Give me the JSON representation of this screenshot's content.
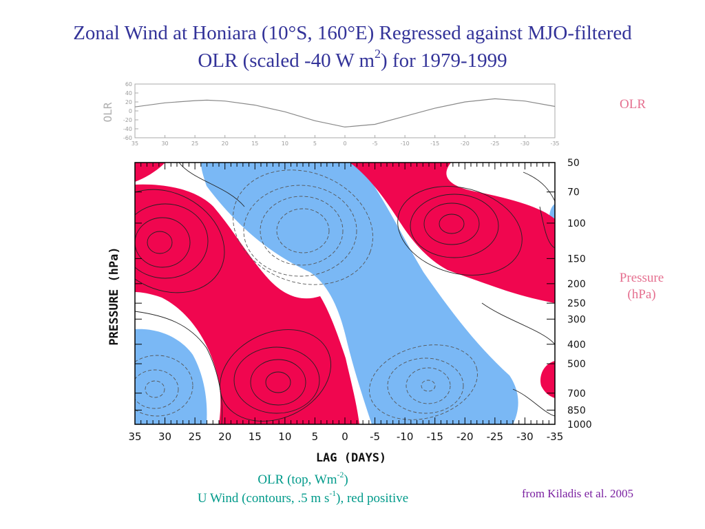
{
  "title": {
    "line1": "Zonal Wind at Honiara (10°S, 160°E) Regressed against MJO-filtered",
    "line2_pre": "OLR (scaled -40 W m",
    "line2_sup": "2",
    "line2_post": ") for 1979-1999"
  },
  "side_labels": {
    "olr": "OLR",
    "pressure_line1": "Pressure",
    "pressure_line2": "(hPa)"
  },
  "caption": {
    "line1_pre": "OLR (top, Wm",
    "line1_sup": "-2",
    "line1_post": ")",
    "line2_pre": "U Wind (contours, .5 m s",
    "line2_sup": "-1",
    "line2_post": "), red positive"
  },
  "credit": "from Kiladis et al. 2005",
  "colors": {
    "title": "#333399",
    "positive_fill": "#f0064f",
    "negative_fill": "#7ab8f5",
    "side_label": "#e56f8f",
    "caption": "#009a8a",
    "credit": "#7a1fa0"
  },
  "chart_data": [
    {
      "type": "line",
      "ylabel": "OLR",
      "x_ticks": [
        35,
        30,
        25,
        20,
        15,
        10,
        5,
        0,
        -5,
        -10,
        -15,
        -20,
        -25,
        -30,
        -35
      ],
      "x_tick_labels": [
        "35",
        "30",
        "25",
        "20",
        "15",
        "10",
        "5",
        "0",
        "-5",
        "-10",
        "-15",
        "-20",
        "-25",
        "-30",
        "-35"
      ],
      "y_ticks": [
        60,
        40,
        20,
        0,
        -20,
        -40,
        -60
      ],
      "y_tick_labels": [
        "60",
        "40",
        "20",
        "0",
        "-20",
        "-40",
        "-60"
      ],
      "xlim": [
        35,
        -35
      ],
      "ylim": [
        -60,
        60
      ],
      "series": [
        {
          "x": [
            35,
            30,
            25,
            23,
            20,
            15,
            10,
            5,
            0,
            -5,
            -10,
            -15,
            -20,
            -25,
            -30,
            -35
          ],
          "y": [
            9,
            18,
            23,
            24,
            22,
            13,
            -2,
            -22,
            -36,
            -30,
            -12,
            6,
            20,
            27,
            22,
            10
          ]
        }
      ]
    },
    {
      "type": "heatmap",
      "xlabel": "LAG (DAYS)",
      "ylabel": "PRESSURE (hPa)",
      "x_ticks": [
        35,
        30,
        25,
        20,
        15,
        10,
        5,
        0,
        -5,
        -10,
        -15,
        -20,
        -25,
        -30,
        -35
      ],
      "x_tick_labels": [
        "35",
        "30",
        "25",
        "20",
        "15",
        "10",
        "5",
        "0",
        "-5",
        "-10",
        "-15",
        "-20",
        "-25",
        "-30",
        "-35"
      ],
      "y_ticks": [
        50,
        70,
        100,
        150,
        200,
        250,
        300,
        400,
        500,
        700,
        850,
        1000
      ],
      "y_tick_labels": [
        "50",
        "70",
        "100",
        "150",
        "200",
        "250",
        "300",
        "400",
        "500",
        "700",
        "850",
        "1000"
      ],
      "xlim": [
        35,
        -35
      ],
      "ylim": [
        1000,
        50
      ],
      "y_scale": "log",
      "contour_interval": 0.5,
      "positive_region_centers": [
        {
          "lag": 30,
          "pressure": 130
        },
        {
          "lag": 10,
          "pressure": 700
        },
        {
          "lag": -17,
          "pressure": 100
        },
        {
          "lag": -34,
          "pressure": 680
        }
      ],
      "negative_region_centers": [
        {
          "lag": 33,
          "pressure": 720
        },
        {
          "lag": 4,
          "pressure": 120
        },
        {
          "lag": -15,
          "pressure": 700
        }
      ]
    }
  ]
}
